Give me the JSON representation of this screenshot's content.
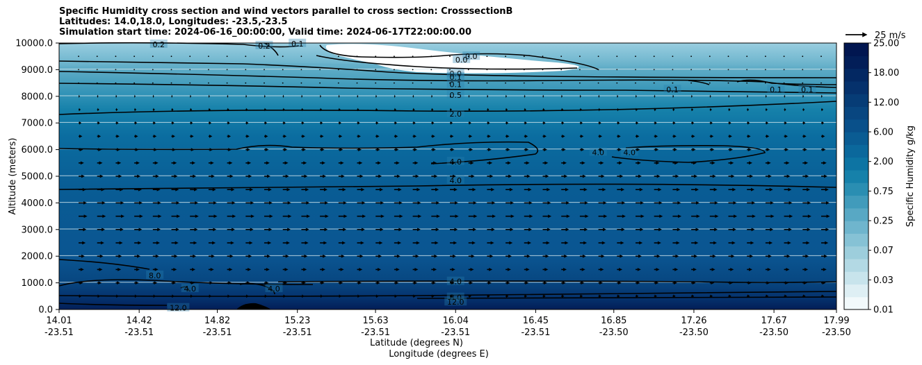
{
  "title": {
    "line1": "Specific Humidity cross section and wind vectors parallel to cross section: CrosssectionB",
    "line2": "Latitudes: 14.0,18.0, Longitudes: -23.5,-23.5",
    "line3": "Simulation start time: 2024-06-16_00:00:00, Valid time: 2024-06-17T22:00:00.00"
  },
  "chart_data": {
    "type": "heatmap",
    "subtype": "filled contour cross section with wind vectors",
    "ylabel": "Altitude (meters)",
    "xlabel_lat": "Latitude (degrees N)",
    "xlabel_lon": "Longitude (degrees E)",
    "ylim": [
      0,
      10000
    ],
    "yticks": [
      "0.0",
      "1000.0",
      "2000.0",
      "3000.0",
      "4000.0",
      "5000.0",
      "6000.0",
      "7000.0",
      "8000.0",
      "9000.0",
      "10000.0"
    ],
    "xlim": [
      14.01,
      17.99
    ],
    "xticks_lat": [
      "14.01",
      "14.42",
      "14.82",
      "15.23",
      "15.63",
      "16.04",
      "16.45",
      "16.85",
      "17.26",
      "17.67",
      "17.99"
    ],
    "xticks_lon": [
      "-23.51",
      "-23.51",
      "-23.51",
      "-23.51",
      "-23.51",
      "-23.51",
      "-23.51",
      "-23.50",
      "-23.50",
      "-23.50",
      "-23.50"
    ],
    "colorbar": {
      "label": "Specific Humidity g/kg",
      "tick_labels": [
        "0.01",
        "0.03",
        "0.07",
        "0.25",
        "0.75",
        "2.00",
        "6.00",
        "12.00",
        "18.00",
        "25.00"
      ],
      "level_colors": [
        "#f2f9fb",
        "#deeff4",
        "#c8e4ec",
        "#b3d9e4",
        "#9dcedc",
        "#86c2d5",
        "#6fb5cd",
        "#58a8c4",
        "#419bbb",
        "#2a8eb2",
        "#1681aa",
        "#0d74a3",
        "#0b689c",
        "#0a5c93",
        "#09508a",
        "#084680",
        "#063c76",
        "#05316c",
        "#032862",
        "#021e58",
        "#011650"
      ]
    },
    "contour_labels": [
      {
        "value": "0.2",
        "lat": 14.52,
        "alt": 9950
      },
      {
        "value": "0.2",
        "lat": 15.06,
        "alt": 9900
      },
      {
        "value": "0.1",
        "lat": 15.23,
        "alt": 9980
      },
      {
        "value": "0.0",
        "lat": 16.12,
        "alt": 9500
      },
      {
        "value": "0.0",
        "lat": 16.07,
        "alt": 9380
      },
      {
        "value": "0.0",
        "lat": 16.04,
        "alt": 8850
      },
      {
        "value": "0.1",
        "lat": 16.04,
        "alt": 8730
      },
      {
        "value": "0.1",
        "lat": 16.04,
        "alt": 8450
      },
      {
        "value": "0.5",
        "lat": 16.04,
        "alt": 8050
      },
      {
        "value": "0.1",
        "lat": 17.15,
        "alt": 8250
      },
      {
        "value": "0.1",
        "lat": 17.68,
        "alt": 8250
      },
      {
        "value": "0.1",
        "lat": 17.84,
        "alt": 8250
      },
      {
        "value": "2.0",
        "lat": 16.04,
        "alt": 7350
      },
      {
        "value": "4.0",
        "lat": 16.77,
        "alt": 5900
      },
      {
        "value": "4.0",
        "lat": 16.93,
        "alt": 5900
      },
      {
        "value": "4.0",
        "lat": 16.04,
        "alt": 5550
      },
      {
        "value": "4.0",
        "lat": 16.04,
        "alt": 4850
      },
      {
        "value": "8.0",
        "lat": 14.5,
        "alt": 1280
      },
      {
        "value": "4.0",
        "lat": 14.68,
        "alt": 780
      },
      {
        "value": "4.0",
        "lat": 15.11,
        "alt": 780
      },
      {
        "value": "4.0",
        "lat": 16.04,
        "alt": 1050
      },
      {
        "value": "8.0",
        "lat": 16.04,
        "alt": 450
      },
      {
        "value": "12.0",
        "lat": 16.04,
        "alt": 280
      },
      {
        "value": "12.0",
        "lat": 14.62,
        "alt": 60
      }
    ],
    "wind_vectors": {
      "reference_label": "25 m/s",
      "reference_speed_ms": 25,
      "rows": [
        {
          "alt": 9500,
          "u": -0.5
        },
        {
          "alt": 9000,
          "u": -0.8
        },
        {
          "alt": 8500,
          "u": 0.5
        },
        {
          "alt": 8000,
          "u": 1.5
        },
        {
          "alt": 7500,
          "u": 2.5
        },
        {
          "alt": 7000,
          "u": 3.5
        },
        {
          "alt": 6500,
          "u": 4.5
        },
        {
          "alt": 6000,
          "u": 5.5
        },
        {
          "alt": 5500,
          "u": 6.5
        },
        {
          "alt": 5000,
          "u": 7.5
        },
        {
          "alt": 4500,
          "u": 9.0
        },
        {
          "alt": 4000,
          "u": 10.0
        },
        {
          "alt": 3500,
          "u": 10.5
        },
        {
          "alt": 3000,
          "u": 9.5
        },
        {
          "alt": 2500,
          "u": 8.5
        },
        {
          "alt": 2000,
          "u": 7.5
        },
        {
          "alt": 1500,
          "u": 6.5
        },
        {
          "alt": 1000,
          "u": 5.5
        },
        {
          "alt": 500,
          "u": 3.5
        }
      ]
    }
  }
}
